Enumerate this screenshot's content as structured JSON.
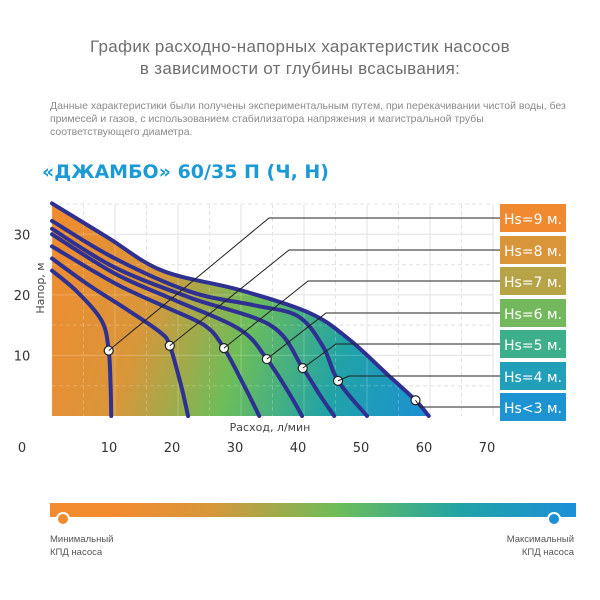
{
  "header": {
    "title_line1": "График расходно-напорных характеристик насосов",
    "title_line2": "в зависимости от глубины всасывания:",
    "description": "Данные характеристики были получены экспериментальным путем, при перекачивании чистой воды, без примесей и газов, с использованием стабилизатора напряжения и магистральной трубы соответствующего диаметра.",
    "model": "«ДЖАМБО» 60/35 П (Ч, Н)"
  },
  "chart_data": {
    "type": "line",
    "xlabel": "Расход, л/мин",
    "ylabel": "Напор, м",
    "xlim": [
      0,
      70
    ],
    "ylim": [
      0,
      35
    ],
    "x_ticks": [
      "0",
      "10",
      "20",
      "30",
      "40",
      "50",
      "60",
      "70"
    ],
    "y_ticks": [
      "10",
      "20",
      "30"
    ],
    "grid": true,
    "curve_color": "#2e3192",
    "fill_gradient": [
      "#f28a2e",
      "#d9963a",
      "#6cbd5a",
      "#21a3a6",
      "#1b8fd8"
    ],
    "series": [
      {
        "name": "Hs=9 м.",
        "color": "#f08a30",
        "points": [
          [
            0,
            24
          ],
          [
            4,
            20.5
          ],
          [
            7.9,
            15.7
          ],
          [
            9,
            10.8
          ],
          [
            9.3,
            5
          ],
          [
            9.4,
            0
          ]
        ],
        "marker": [
          9,
          10.8
        ]
      },
      {
        "name": "Hs=8 м.",
        "color": "#d9953a",
        "points": [
          [
            0,
            26
          ],
          [
            6,
            21.5
          ],
          [
            12,
            17.5
          ],
          [
            17.2,
            13.8
          ],
          [
            18.7,
            11.6
          ],
          [
            20.5,
            5
          ],
          [
            21.6,
            0
          ]
        ],
        "marker": [
          18.7,
          11.6
        ]
      },
      {
        "name": "Hs=7 м.",
        "color": "#b8a448",
        "points": [
          [
            0,
            28
          ],
          [
            10,
            21.9
          ],
          [
            18,
            18
          ],
          [
            24.3,
            14.9
          ],
          [
            27.3,
            11.2
          ],
          [
            30.5,
            5
          ],
          [
            32.9,
            0
          ]
        ],
        "marker": [
          27.3,
          11.2
        ]
      },
      {
        "name": "Hs=6 м.",
        "color": "#74b85e",
        "points": [
          [
            0,
            30
          ],
          [
            10,
            23.5
          ],
          [
            19.3,
            19.2
          ],
          [
            29.8,
            14.3
          ],
          [
            34.1,
            9.4
          ],
          [
            37.5,
            4
          ],
          [
            39.7,
            0
          ]
        ],
        "marker": [
          34.1,
          9.4
        ]
      },
      {
        "name": "Hs=5 м.",
        "color": "#3daf8b",
        "points": [
          [
            0,
            30.9
          ],
          [
            10,
            24.5
          ],
          [
            22,
            19.5
          ],
          [
            34.8,
            14.9
          ],
          [
            39.8,
            7.9
          ],
          [
            42.5,
            3.5
          ],
          [
            44.8,
            0
          ]
        ],
        "marker": [
          39.8,
          7.9
        ]
      },
      {
        "name": "Hs=4 м.",
        "color": "#22a0ba",
        "points": [
          [
            0,
            32.2
          ],
          [
            10,
            26
          ],
          [
            22,
            20.5
          ],
          [
            32,
            18.3
          ],
          [
            39,
            16.5
          ],
          [
            43,
            11.5
          ],
          [
            45.4,
            5.8
          ],
          [
            50,
            0
          ]
        ],
        "marker": [
          45.4,
          5.8
        ]
      },
      {
        "name": "Hs<3 м.",
        "color": "#1e93d2",
        "points": [
          [
            0,
            35.1
          ],
          [
            8.8,
            29.5
          ],
          [
            17.5,
            24
          ],
          [
            29.8,
            20.8
          ],
          [
            40.9,
            17
          ],
          [
            47.1,
            12.7
          ],
          [
            53.3,
            6.8
          ],
          [
            57.7,
            2.6
          ],
          [
            59.8,
            0
          ]
        ],
        "marker": [
          57.7,
          2.6
        ]
      }
    ]
  },
  "legend_bar": {
    "min_label_line1": "Минимальный",
    "min_label_line2": "КПД насоса",
    "max_label_line1": "Максимальный",
    "max_label_line2": "КПД насоса",
    "min_color": "#f28a2e",
    "max_color": "#1b8fd8"
  }
}
